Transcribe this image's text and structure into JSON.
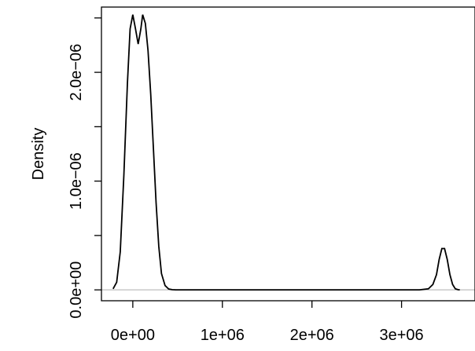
{
  "chart_data": {
    "type": "line",
    "title": "",
    "xlabel": "",
    "ylabel": "Density",
    "xlim": [
      -350000,
      3820000
    ],
    "ylim": [
      -1e-07,
      2.6e-06
    ],
    "x_ticks": [
      {
        "value": 0,
        "label": "0e+00"
      },
      {
        "value": 1000000,
        "label": "1e+06"
      },
      {
        "value": 2000000,
        "label": "2e+06"
      },
      {
        "value": 3000000,
        "label": "3e+06"
      }
    ],
    "y_ticks": [
      {
        "value": 0,
        "label": "0.0e+00"
      },
      {
        "value": 5e-07,
        "label": ""
      },
      {
        "value": 1e-06,
        "label": "1.0e−06"
      },
      {
        "value": 1.5e-06,
        "label": ""
      },
      {
        "value": 2e-06,
        "label": "2.0e−06"
      },
      {
        "value": 2.5e-06,
        "label": ""
      }
    ],
    "reference_line": {
      "y": 0,
      "color": "#bebebe"
    },
    "series": [
      {
        "x": [
          -220000,
          -180000,
          -140000,
          -100000,
          -60000,
          -30000,
          0,
          30000,
          60000,
          90000,
          110000,
          140000,
          170000,
          200000,
          230000,
          260000,
          290000,
          320000,
          360000,
          400000,
          440000,
          480000,
          520000,
          1000000,
          2000000,
          2900000,
          3200000,
          3300000,
          3350000,
          3390000,
          3420000,
          3450000,
          3480000,
          3510000,
          3540000,
          3570000,
          3600000,
          3630000,
          3650000
        ],
        "y": [
          1e-08,
          7e-08,
          3.5e-07,
          1.05e-06,
          1.9e-06,
          2.4e-06,
          2.53e-06,
          2.4e-06,
          2.26e-06,
          2.4e-06,
          2.53e-06,
          2.45e-06,
          2.2e-06,
          1.8e-06,
          1.3e-06,
          8e-07,
          4e-07,
          1.5e-07,
          4e-08,
          8e-09,
          2e-09,
          0,
          0,
          0,
          0,
          0,
          0,
          1e-08,
          5e-08,
          1.4e-07,
          2.8e-07,
          3.8e-07,
          3.8e-07,
          2.8e-07,
          1.4e-07,
          5e-08,
          1e-08,
          2e-09,
          0
        ],
        "color": "#000000"
      }
    ],
    "grid": false,
    "legend": "none"
  }
}
